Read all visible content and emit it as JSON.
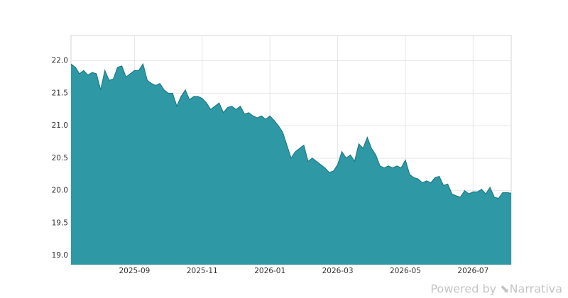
{
  "chart_data": {
    "type": "area",
    "color": "#2e98a5",
    "line_color": "#1f7c88",
    "grid": true,
    "ylim": [
      18.86,
      22.39
    ],
    "yticks": [
      {
        "value": 19,
        "label": "19.0"
      },
      19.5,
      {
        "value": 20,
        "label": "20.0"
      },
      20.5,
      {
        "value": 21,
        "label": "21.0"
      },
      21.5,
      {
        "value": 22,
        "label": "22.0"
      }
    ],
    "categories": [
      null,
      null,
      null,
      null,
      null,
      null,
      null,
      null,
      null,
      null,
      null,
      null,
      null,
      null,
      null,
      "2025-09",
      null,
      null,
      null,
      null,
      null,
      null,
      null,
      null,
      null,
      null,
      null,
      null,
      null,
      null,
      null,
      "2025-11",
      null,
      null,
      null,
      null,
      null,
      null,
      null,
      null,
      null,
      null,
      null,
      null,
      null,
      null,
      null,
      "2026-01",
      null,
      null,
      null,
      null,
      null,
      null,
      null,
      null,
      null,
      null,
      null,
      null,
      null,
      null,
      null,
      "2026-03",
      null,
      null,
      null,
      null,
      null,
      null,
      null,
      null,
      null,
      null,
      null,
      null,
      null,
      null,
      null,
      "2026-05",
      null,
      null,
      null,
      null,
      null,
      null,
      null,
      null,
      null,
      null,
      null,
      null,
      null,
      null,
      null,
      "2026-07",
      null,
      null,
      null,
      null,
      null,
      null,
      null,
      null,
      null
    ],
    "values": [
      21.95,
      21.9,
      21.8,
      21.85,
      21.78,
      21.82,
      21.8,
      21.55,
      21.85,
      21.7,
      21.72,
      21.9,
      21.92,
      21.75,
      21.8,
      21.85,
      21.85,
      21.95,
      21.7,
      21.65,
      21.62,
      21.65,
      21.55,
      21.5,
      21.5,
      21.3,
      21.45,
      21.55,
      21.4,
      21.45,
      21.45,
      21.42,
      21.35,
      21.25,
      21.3,
      21.35,
      21.2,
      21.28,
      21.3,
      21.25,
      21.3,
      21.18,
      21.2,
      21.15,
      21.12,
      21.15,
      21.1,
      21.15,
      21.08,
      21.0,
      20.9,
      20.7,
      20.5,
      20.6,
      20.65,
      20.7,
      20.45,
      20.5,
      20.45,
      20.4,
      20.35,
      20.28,
      20.3,
      20.4,
      20.6,
      20.5,
      20.55,
      20.45,
      20.72,
      20.65,
      20.82,
      20.65,
      20.55,
      20.38,
      20.35,
      20.38,
      20.35,
      20.38,
      20.35,
      20.47,
      20.25,
      20.2,
      20.18,
      20.12,
      20.15,
      20.12,
      20.2,
      20.22,
      20.08,
      20.1,
      19.95,
      19.92,
      19.9,
      20.0,
      19.95,
      19.98,
      19.98,
      20.02,
      19.95,
      20.05,
      19.9,
      19.88,
      19.97,
      19.97,
      19.96
    ],
    "watermark": "Powered by ⬊Narrativa"
  }
}
